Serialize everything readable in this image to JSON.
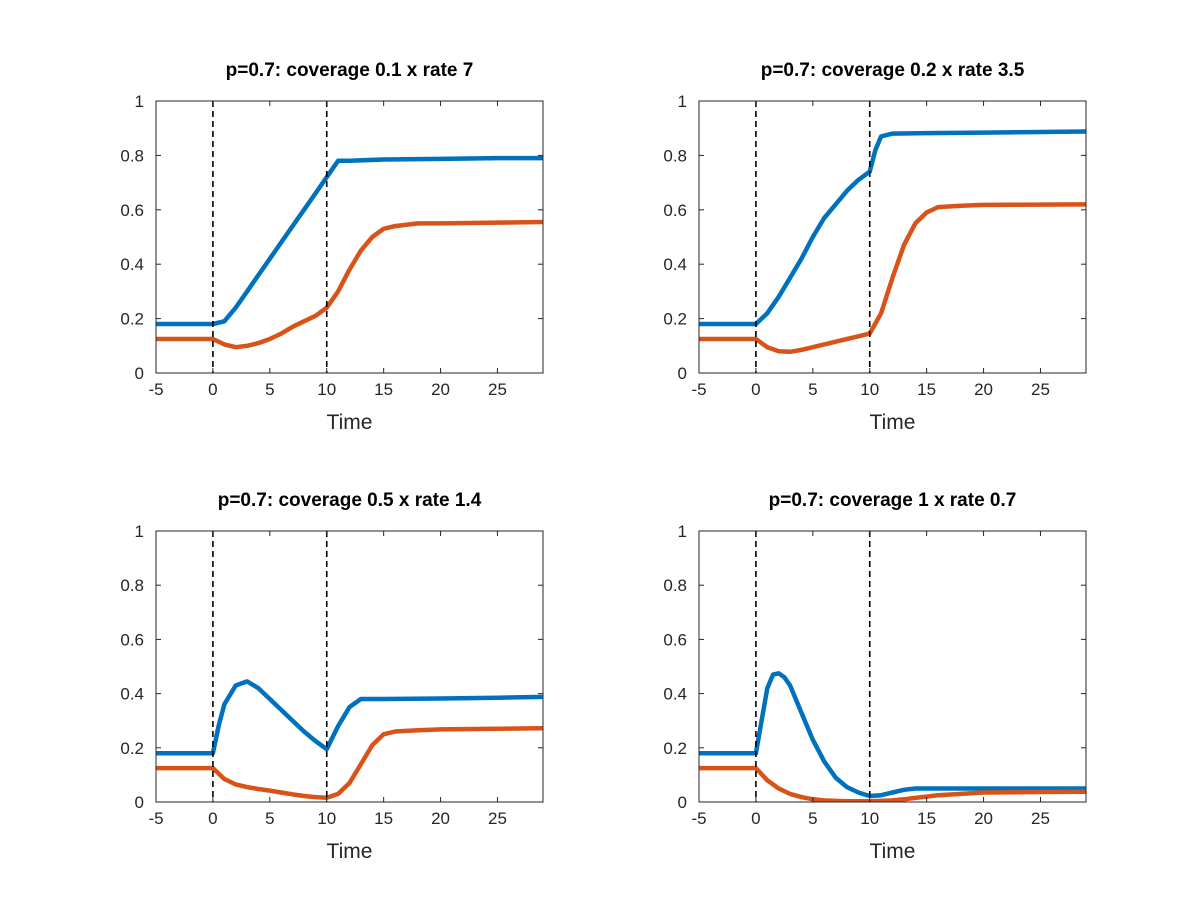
{
  "colors": {
    "series_blue": "#0072BD",
    "series_orange": "#D95319",
    "axes": "#262626",
    "background": "#ffffff"
  },
  "chart_data": [
    {
      "type": "line",
      "title": "p=0.7: coverage 0.1 x rate 7",
      "xlabel": "Time",
      "ylabel": "",
      "xlim": [
        -5,
        29
      ],
      "ylim": [
        0,
        1
      ],
      "xticks": [
        "-5",
        "0",
        "5",
        "10",
        "15",
        "20",
        "25"
      ],
      "yticks": [
        "0",
        "0.2",
        "0.4",
        "0.6",
        "0.8",
        "1"
      ],
      "vlines": [
        0,
        10
      ],
      "grid": false,
      "series": [
        {
          "color": "#0072BD",
          "x": [
            -5,
            0,
            1,
            2,
            3,
            4,
            5,
            6,
            7,
            8,
            9,
            10,
            11,
            12,
            15,
            20,
            25,
            29
          ],
          "y": [
            0.18,
            0.18,
            0.19,
            0.24,
            0.3,
            0.36,
            0.42,
            0.48,
            0.54,
            0.6,
            0.66,
            0.72,
            0.78,
            0.78,
            0.785,
            0.787,
            0.79,
            0.79
          ]
        },
        {
          "color": "#D95319",
          "x": [
            -5,
            0,
            1,
            2,
            3,
            4,
            5,
            6,
            7,
            8,
            9,
            10,
            11,
            12,
            13,
            14,
            15,
            16,
            18,
            20,
            25,
            29
          ],
          "y": [
            0.125,
            0.125,
            0.105,
            0.095,
            0.1,
            0.11,
            0.125,
            0.145,
            0.17,
            0.19,
            0.21,
            0.24,
            0.3,
            0.38,
            0.45,
            0.5,
            0.53,
            0.54,
            0.55,
            0.55,
            0.553,
            0.555
          ]
        }
      ]
    },
    {
      "type": "line",
      "title": "p=0.7: coverage 0.2 x rate 3.5",
      "xlabel": "Time",
      "ylabel": "",
      "xlim": [
        -5,
        29
      ],
      "ylim": [
        0,
        1
      ],
      "xticks": [
        "-5",
        "0",
        "5",
        "10",
        "15",
        "20",
        "25"
      ],
      "yticks": [
        "0",
        "0.2",
        "0.4",
        "0.6",
        "0.8",
        "1"
      ],
      "vlines": [
        0,
        10
      ],
      "grid": false,
      "series": [
        {
          "color": "#0072BD",
          "x": [
            -5,
            0,
            0.5,
            1,
            2,
            3,
            4,
            5,
            6,
            7,
            8,
            9,
            10,
            10.5,
            11,
            12,
            15,
            20,
            25,
            29
          ],
          "y": [
            0.18,
            0.18,
            0.2,
            0.22,
            0.28,
            0.35,
            0.42,
            0.5,
            0.57,
            0.62,
            0.67,
            0.71,
            0.74,
            0.82,
            0.87,
            0.88,
            0.882,
            0.884,
            0.886,
            0.888
          ]
        },
        {
          "color": "#D95319",
          "x": [
            -5,
            0,
            1,
            2,
            3,
            4,
            5,
            6,
            7,
            8,
            9,
            10,
            11,
            12,
            13,
            14,
            15,
            16,
            18,
            20,
            25,
            29
          ],
          "y": [
            0.125,
            0.125,
            0.095,
            0.08,
            0.078,
            0.085,
            0.095,
            0.105,
            0.115,
            0.125,
            0.135,
            0.145,
            0.22,
            0.35,
            0.47,
            0.55,
            0.59,
            0.61,
            0.615,
            0.618,
            0.619,
            0.62
          ]
        }
      ]
    },
    {
      "type": "line",
      "title": "p=0.7: coverage 0.5 x rate 1.4",
      "xlabel": "Time",
      "ylabel": "",
      "xlim": [
        -5,
        29
      ],
      "ylim": [
        0,
        1
      ],
      "xticks": [
        "-5",
        "0",
        "5",
        "10",
        "15",
        "20",
        "25"
      ],
      "yticks": [
        "0",
        "0.2",
        "0.4",
        "0.6",
        "0.8",
        "1"
      ],
      "vlines": [
        0,
        10
      ],
      "grid": false,
      "series": [
        {
          "color": "#0072BD",
          "x": [
            -5,
            0,
            0.5,
            1,
            2,
            3,
            4,
            5,
            6,
            7,
            8,
            9,
            10,
            11,
            12,
            13,
            15,
            20,
            25,
            29
          ],
          "y": [
            0.18,
            0.18,
            0.28,
            0.36,
            0.43,
            0.445,
            0.42,
            0.38,
            0.34,
            0.3,
            0.26,
            0.225,
            0.195,
            0.28,
            0.35,
            0.38,
            0.38,
            0.382,
            0.385,
            0.388
          ]
        },
        {
          "color": "#D95319",
          "x": [
            -5,
            0,
            1,
            2,
            3,
            4,
            5,
            6,
            7,
            8,
            9,
            10,
            11,
            12,
            13,
            14,
            15,
            16,
            18,
            20,
            25,
            29
          ],
          "y": [
            0.125,
            0.125,
            0.085,
            0.065,
            0.055,
            0.048,
            0.042,
            0.035,
            0.028,
            0.022,
            0.018,
            0.016,
            0.03,
            0.07,
            0.14,
            0.21,
            0.25,
            0.26,
            0.265,
            0.268,
            0.27,
            0.272
          ]
        }
      ]
    },
    {
      "type": "line",
      "title": "p=0.7: coverage 1 x rate 0.7",
      "xlabel": "Time",
      "ylabel": "",
      "xlim": [
        -5,
        29
      ],
      "ylim": [
        0,
        1
      ],
      "xticks": [
        "-5",
        "0",
        "5",
        "10",
        "15",
        "20",
        "25"
      ],
      "yticks": [
        "0",
        "0.2",
        "0.4",
        "0.6",
        "0.8",
        "1"
      ],
      "vlines": [
        0,
        10
      ],
      "grid": false,
      "series": [
        {
          "color": "#0072BD",
          "x": [
            -5,
            0,
            0.5,
            1,
            1.5,
            2,
            2.5,
            3,
            4,
            5,
            6,
            7,
            8,
            9,
            10,
            11,
            12,
            13,
            14,
            20,
            25,
            29
          ],
          "y": [
            0.18,
            0.18,
            0.3,
            0.42,
            0.47,
            0.475,
            0.46,
            0.43,
            0.33,
            0.23,
            0.15,
            0.09,
            0.055,
            0.035,
            0.022,
            0.025,
            0.035,
            0.045,
            0.05,
            0.05,
            0.05,
            0.05
          ]
        },
        {
          "color": "#D95319",
          "x": [
            -5,
            0,
            1,
            2,
            3,
            4,
            5,
            6,
            7,
            8,
            9,
            10,
            11,
            12,
            13,
            14,
            15,
            16,
            18,
            20,
            25,
            29
          ],
          "y": [
            0.125,
            0.125,
            0.08,
            0.05,
            0.03,
            0.018,
            0.01,
            0.006,
            0.004,
            0.003,
            0.003,
            0.003,
            0.004,
            0.006,
            0.01,
            0.015,
            0.02,
            0.025,
            0.03,
            0.035,
            0.037,
            0.038
          ]
        }
      ]
    }
  ]
}
